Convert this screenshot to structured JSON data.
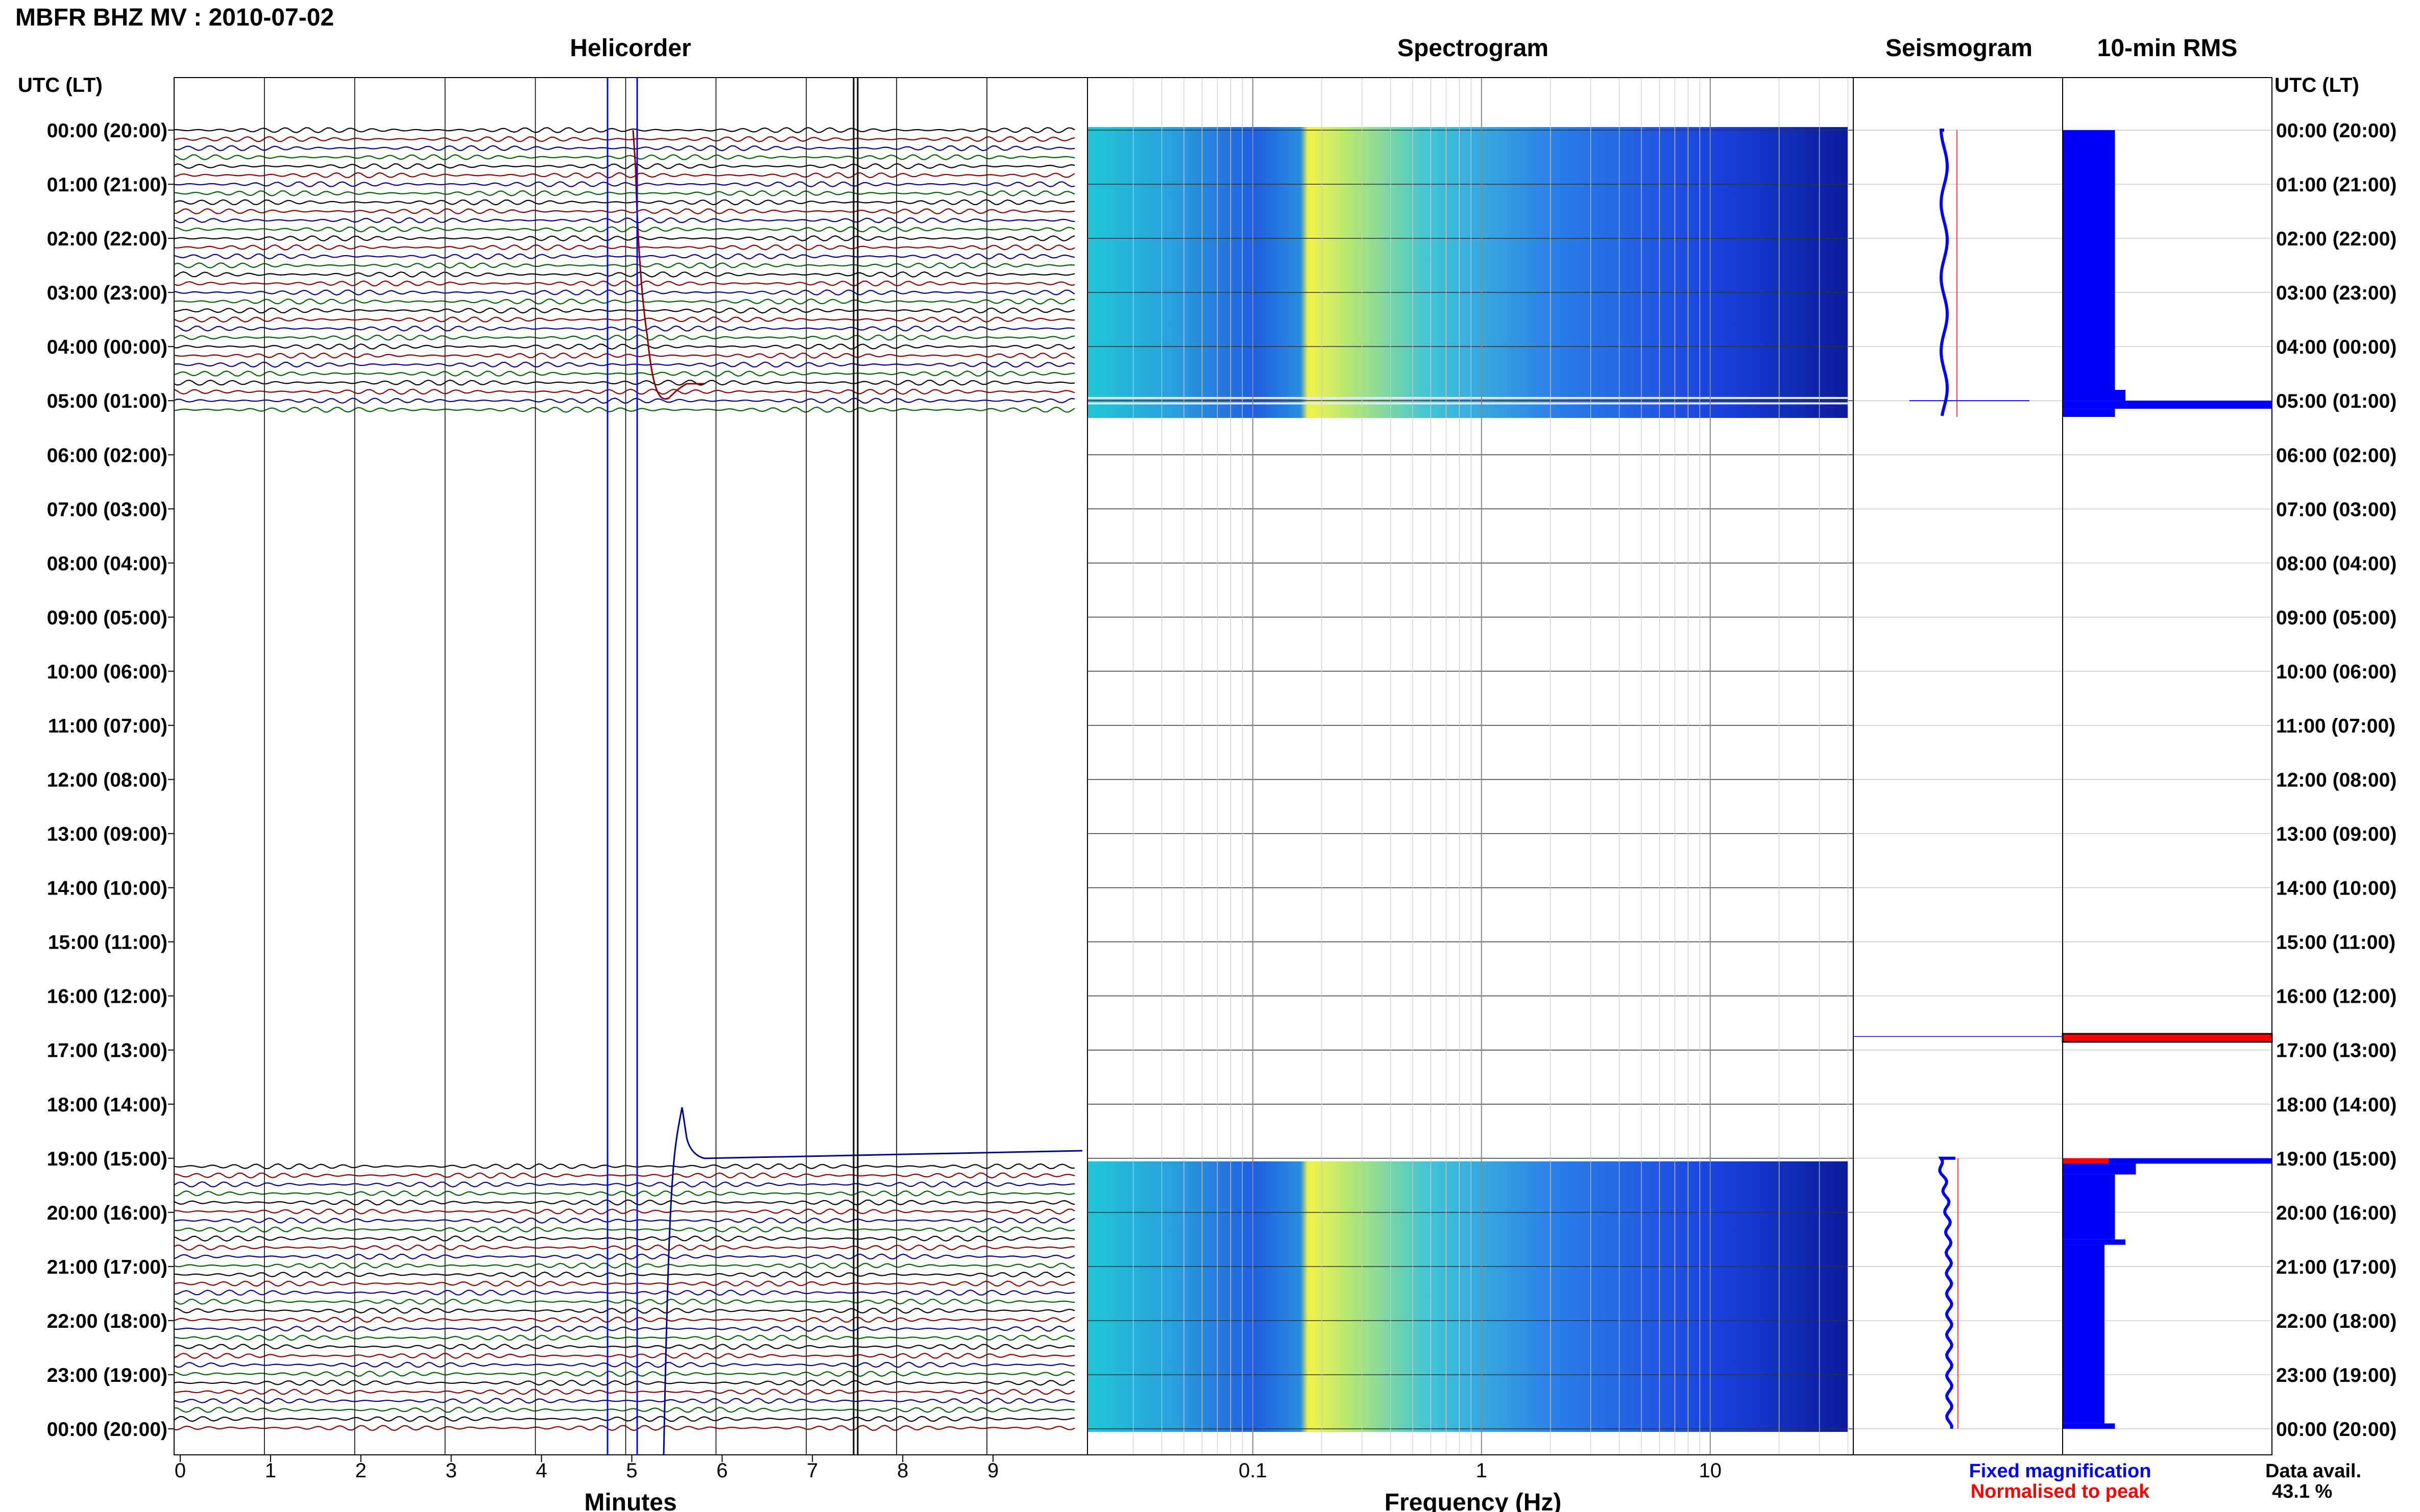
{
  "title": "MBFR BHZ MV : 2010-07-02",
  "panels": {
    "helicorder": "Helicorder",
    "spectrogram": "Spectrogram",
    "seismogram": "Seismogram",
    "rms": "10-min RMS"
  },
  "time_axis_label": "UTC (LT)",
  "time_ticks": [
    "00:00 (20:00)",
    "01:00 (21:00)",
    "02:00 (22:00)",
    "03:00 (23:00)",
    "04:00 (00:00)",
    "05:00 (01:00)",
    "06:00 (02:00)",
    "07:00 (03:00)",
    "08:00 (04:00)",
    "09:00 (05:00)",
    "10:00 (06:00)",
    "11:00 (07:00)",
    "12:00 (08:00)",
    "13:00 (09:00)",
    "14:00 (10:00)",
    "15:00 (11:00)",
    "16:00 (12:00)",
    "17:00 (13:00)",
    "18:00 (14:00)",
    "19:00 (15:00)",
    "20:00 (16:00)",
    "21:00 (17:00)",
    "22:00 (18:00)",
    "23:00 (19:00)",
    "00:00 (20:00)"
  ],
  "helicorder_xlabel": "Minutes",
  "helicorder_xticks": [
    "0",
    "1",
    "2",
    "3",
    "4",
    "5",
    "6",
    "7",
    "8",
    "9"
  ],
  "spectrogram_xlabel": "Frequency (Hz)",
  "spectrogram_xticks": [
    "0.1",
    "1",
    "10"
  ],
  "legend": {
    "fixed": "Fixed magnification",
    "normalised": "Normalised to peak"
  },
  "data_avail_label": "Data avail.",
  "data_avail_value": "43.1 %",
  "colors": {
    "trace_black": "#000000",
    "trace_red": "#8b0000",
    "trace_blue": "#00008b",
    "trace_green": "#006400",
    "fixed": "#0000ff",
    "normalised": "#ff0000"
  },
  "chart_data": {
    "type": "heatmap",
    "data_gaps_utc_hours": [
      [
        5.3,
        19.0
      ]
    ],
    "data_availability_percent": 43.1,
    "helicorder": {
      "x_range_minutes": [
        0,
        10
      ],
      "y_range_utc_hours": [
        0,
        24
      ],
      "trace_colors_cycle": [
        "black",
        "red",
        "blue",
        "green"
      ]
    },
    "spectrogram": {
      "x_scale": "log",
      "x_range_hz": [
        0.02,
        50
      ]
    },
    "rms_10min": {
      "x_scale": "relative",
      "segments": [
        {
          "from_hour": 0.0,
          "to_hour": 4.8,
          "level": 0.25
        },
        {
          "from_hour": 4.8,
          "to_hour": 5.0,
          "level": 0.3
        },
        {
          "from_hour": 5.0,
          "to_hour": 5.15,
          "level": 1.0
        },
        {
          "from_hour": 5.15,
          "to_hour": 5.3,
          "level": 0.25
        },
        {
          "from_hour": 16.7,
          "to_hour": 16.85,
          "level": 1.0,
          "series": "normalised"
        },
        {
          "from_hour": 19.0,
          "to_hour": 19.1,
          "level": 1.0
        },
        {
          "from_hour": 19.1,
          "to_hour": 19.3,
          "level": 0.35
        },
        {
          "from_hour": 19.3,
          "to_hour": 20.5,
          "level": 0.25
        },
        {
          "from_hour": 20.5,
          "to_hour": 20.6,
          "level": 0.3
        },
        {
          "from_hour": 20.6,
          "to_hour": 23.9,
          "level": 0.2
        },
        {
          "from_hour": 23.9,
          "to_hour": 24.0,
          "level": 0.25
        }
      ]
    }
  }
}
